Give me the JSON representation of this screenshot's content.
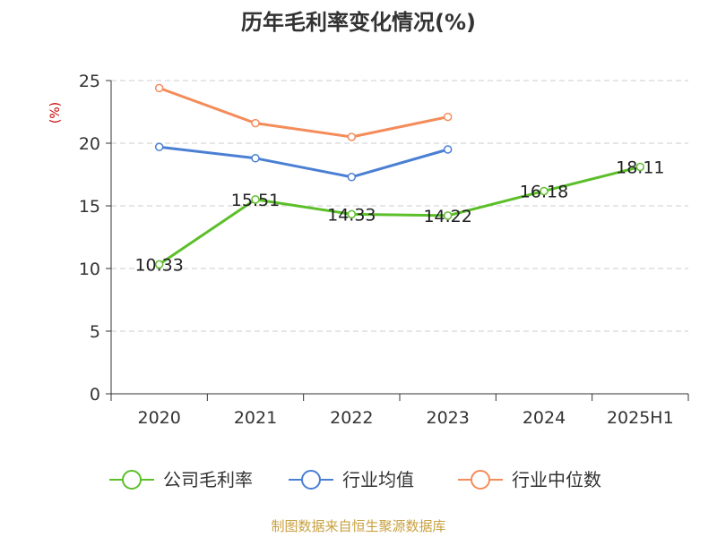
{
  "chart_data": {
    "type": "line",
    "title": "历年毛利率变化情况(%)",
    "ylabel": "(%)",
    "xlabel": "",
    "categories": [
      "2020",
      "2021",
      "2022",
      "2023",
      "2024",
      "2025H1"
    ],
    "ylim": [
      0,
      25
    ],
    "yticks": [
      0,
      5,
      10,
      15,
      20,
      25
    ],
    "grid": true,
    "legend_position": "bottom",
    "series": [
      {
        "name": "公司毛利率",
        "color": "#5cbf2a",
        "values": [
          10.33,
          15.51,
          14.33,
          14.22,
          16.18,
          18.11
        ],
        "labels": [
          "10.33",
          "15.51",
          "14.33",
          "14.22",
          "16.18",
          "18.11"
        ]
      },
      {
        "name": "行业均值",
        "color": "#4a7fd4",
        "values": [
          19.7,
          18.8,
          17.3,
          19.5,
          null,
          null
        ]
      },
      {
        "name": "行业中位数",
        "color": "#f48c5a",
        "values": [
          24.4,
          21.6,
          20.5,
          22.1,
          null,
          null
        ]
      }
    ]
  },
  "footer": {
    "source": "制图数据来自恒生聚源数据库"
  }
}
